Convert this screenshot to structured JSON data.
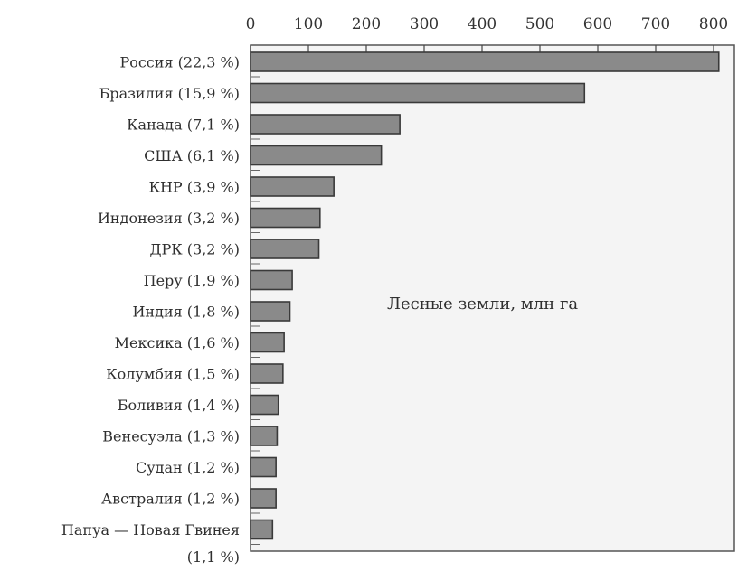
{
  "chart_data": {
    "type": "bar",
    "orientation": "horizontal",
    "categories": [
      "Россия (22,3 %)",
      "Бразилия (15,9 %)",
      "Канада (7,1 %)",
      "США (6,1 %)",
      "КНР (3,9 %)",
      "Индонезия (3,2 %)",
      "ДРК (3,2 %)",
      "Перу (1,9 %)",
      "Индия (1,8 %)",
      "Мексика (1,6 %)",
      "Колумбия (1,5 %)",
      "Боливия (1,4 %)",
      "Венесуэла (1,3 %)",
      "Судан (1,2 %)",
      "Австралия (1,2 %)",
      "Папуа — Новая Гвинея (1,1 %)"
    ],
    "values": [
      809,
      577,
      258,
      226,
      144,
      120,
      118,
      72,
      68,
      58,
      56,
      48,
      46,
      44,
      44,
      38
    ],
    "xlim": [
      0,
      800
    ],
    "xticks": [
      "0",
      "100",
      "200",
      "300",
      "400",
      "500",
      "600",
      "700",
      "800"
    ],
    "annotation": "Лесные земли, млн га",
    "grid": false,
    "colors": {
      "bar": "#8a8a8a",
      "bar_edge": "#3a3a3a",
      "plot_bg": "#f4f4f4"
    }
  }
}
